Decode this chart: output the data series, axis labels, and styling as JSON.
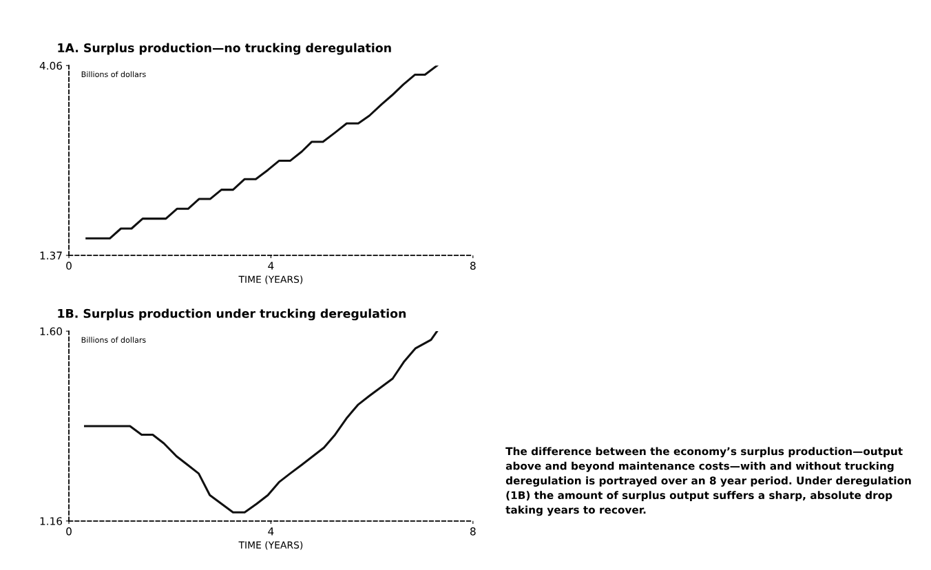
{
  "chart_data": [
    {
      "type": "line",
      "title": "1A. Surplus production—no trucking deregulation",
      "xlabel": "TIME (YEARS)",
      "ylabel": "Billions of dollars",
      "xlim": [
        0,
        8
      ],
      "xticks": [
        0,
        4,
        8
      ],
      "ylim": [
        1.37,
        4.06
      ],
      "yticks": [
        1.37,
        4.06
      ],
      "grid": false,
      "legend": false,
      "series": [
        {
          "color": "#111111",
          "x": [
            0.35,
            0.81,
            1.03,
            1.24,
            1.46,
            1.92,
            2.14,
            2.36,
            2.58,
            2.8,
            3.02,
            3.25,
            3.48,
            3.7,
            3.94,
            4.16,
            4.38,
            4.61,
            4.81,
            5.03,
            5.27,
            5.5,
            5.73,
            5.95,
            6.19,
            6.4,
            6.62,
            6.85,
            7.05,
            7.29
          ],
          "values": [
            1.61,
            1.61,
            1.75,
            1.75,
            1.89,
            1.89,
            2.03,
            2.03,
            2.17,
            2.17,
            2.3,
            2.3,
            2.45,
            2.45,
            2.58,
            2.71,
            2.71,
            2.84,
            2.98,
            2.98,
            3.11,
            3.24,
            3.24,
            3.35,
            3.51,
            3.64,
            3.79,
            3.93,
            3.93,
            4.06
          ]
        }
      ]
    },
    {
      "type": "line",
      "title": "1B. Surplus production under trucking deregulation",
      "xlabel": "TIME (YEARS)",
      "ylabel": "Billions of dollars",
      "xlim": [
        0,
        8
      ],
      "xticks": [
        0,
        4,
        8
      ],
      "ylim": [
        1.16,
        1.6
      ],
      "yticks": [
        1.16,
        {
          "value": 1.6,
          "label": "1.60"
        }
      ],
      "grid": false,
      "legend": false,
      "series": [
        {
          "color": "#111111",
          "x": [
            0.32,
            1.21,
            1.44,
            1.66,
            1.88,
            2.13,
            2.35,
            2.57,
            2.79,
            3.02,
            3.25,
            3.48,
            3.72,
            3.94,
            4.16,
            4.38,
            4.61,
            4.83,
            5.05,
            5.27,
            5.51,
            5.73,
            5.95,
            6.18,
            6.41,
            6.64,
            6.86,
            7.17,
            7.29
          ],
          "values": [
            1.38,
            1.38,
            1.36,
            1.36,
            1.34,
            1.31,
            1.29,
            1.27,
            1.22,
            1.2,
            1.18,
            1.18,
            1.2,
            1.22,
            1.25,
            1.27,
            1.29,
            1.31,
            1.33,
            1.36,
            1.4,
            1.43,
            1.45,
            1.47,
            1.49,
            1.53,
            1.56,
            1.58,
            1.6
          ]
        }
      ],
      "annotations": [
        "The difference between the economy’s surplus production—output above and beyond maintenance costs—with and without trucking deregulation is portrayed over an 8 year period. Under deregulation (1B) the amount of surplus output suffers a sharp, absolute drop taking years to recover."
      ]
    }
  ]
}
